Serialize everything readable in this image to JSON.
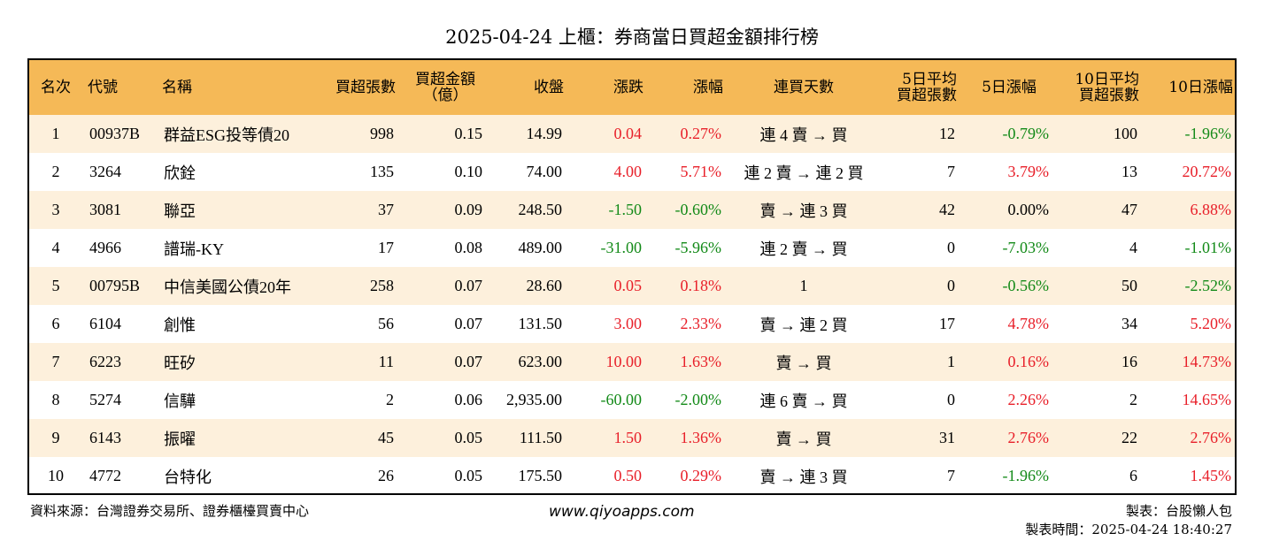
{
  "title": "2025-04-24 上櫃：券商當日買超金額排行榜",
  "headers": {
    "rank": "名次",
    "code": "代號",
    "name": "名稱",
    "net_lots": "買超張數",
    "net_amt_1": "買超金額",
    "net_amt_2": "（億）",
    "close": "收盤",
    "change": "漲跌",
    "pct": "漲幅",
    "streak": "連買天數",
    "avg5_1": "5日平均",
    "avg5_2": "買超張數",
    "pct5": "5日漲幅",
    "avg10_1": "10日平均",
    "avg10_2": "買超張數",
    "pct10": "10日漲幅"
  },
  "rows": [
    {
      "rank": "1",
      "code": "00937B",
      "name": "群益ESG投等債20",
      "lots": "998",
      "amt": "0.15",
      "close": "14.99",
      "change": "0.04",
      "change_dir": "up",
      "pct": "0.27%",
      "pct_dir": "up",
      "streak": "連 4 賣 → 買",
      "avg5": "12",
      "pct5": "-0.79%",
      "pct5_dir": "down",
      "avg10": "100",
      "pct10": "-1.96%",
      "pct10_dir": "down"
    },
    {
      "rank": "2",
      "code": "3264",
      "name": "欣銓",
      "lots": "135",
      "amt": "0.10",
      "close": "74.00",
      "change": "4.00",
      "change_dir": "up",
      "pct": "5.71%",
      "pct_dir": "up",
      "streak": "連 2 賣 → 連 2 買",
      "avg5": "7",
      "pct5": "3.79%",
      "pct5_dir": "up",
      "avg10": "13",
      "pct10": "20.72%",
      "pct10_dir": "up"
    },
    {
      "rank": "3",
      "code": "3081",
      "name": "聯亞",
      "lots": "37",
      "amt": "0.09",
      "close": "248.50",
      "change": "-1.50",
      "change_dir": "down",
      "pct": "-0.60%",
      "pct_dir": "down",
      "streak": "賣 → 連 3 買",
      "avg5": "42",
      "pct5": "0.00%",
      "pct5_dir": "zero",
      "avg10": "47",
      "pct10": "6.88%",
      "pct10_dir": "up"
    },
    {
      "rank": "4",
      "code": "4966",
      "name": "譜瑞-KY",
      "lots": "17",
      "amt": "0.08",
      "close": "489.00",
      "change": "-31.00",
      "change_dir": "down",
      "pct": "-5.96%",
      "pct_dir": "down",
      "streak": "連 2 賣 → 買",
      "avg5": "0",
      "pct5": "-7.03%",
      "pct5_dir": "down",
      "avg10": "4",
      "pct10": "-1.01%",
      "pct10_dir": "down"
    },
    {
      "rank": "5",
      "code": "00795B",
      "name": "中信美國公債20年",
      "lots": "258",
      "amt": "0.07",
      "close": "28.60",
      "change": "0.05",
      "change_dir": "up",
      "pct": "0.18%",
      "pct_dir": "up",
      "streak": "1",
      "avg5": "0",
      "pct5": "-0.56%",
      "pct5_dir": "down",
      "avg10": "50",
      "pct10": "-2.52%",
      "pct10_dir": "down"
    },
    {
      "rank": "6",
      "code": "6104",
      "name": "創惟",
      "lots": "56",
      "amt": "0.07",
      "close": "131.50",
      "change": "3.00",
      "change_dir": "up",
      "pct": "2.33%",
      "pct_dir": "up",
      "streak": "賣 → 連 2 買",
      "avg5": "17",
      "pct5": "4.78%",
      "pct5_dir": "up",
      "avg10": "34",
      "pct10": "5.20%",
      "pct10_dir": "up"
    },
    {
      "rank": "7",
      "code": "6223",
      "name": "旺矽",
      "lots": "11",
      "amt": "0.07",
      "close": "623.00",
      "change": "10.00",
      "change_dir": "up",
      "pct": "1.63%",
      "pct_dir": "up",
      "streak": "賣 → 買",
      "avg5": "1",
      "pct5": "0.16%",
      "pct5_dir": "up",
      "avg10": "16",
      "pct10": "14.73%",
      "pct10_dir": "up"
    },
    {
      "rank": "8",
      "code": "5274",
      "name": "信驊",
      "lots": "2",
      "amt": "0.06",
      "close": "2,935.00",
      "change": "-60.00",
      "change_dir": "down",
      "pct": "-2.00%",
      "pct_dir": "down",
      "streak": "連 6 賣 → 買",
      "avg5": "0",
      "pct5": "2.26%",
      "pct5_dir": "up",
      "avg10": "2",
      "pct10": "14.65%",
      "pct10_dir": "up"
    },
    {
      "rank": "9",
      "code": "6143",
      "name": "振曜",
      "lots": "45",
      "amt": "0.05",
      "close": "111.50",
      "change": "1.50",
      "change_dir": "up",
      "pct": "1.36%",
      "pct_dir": "up",
      "streak": "賣 → 買",
      "avg5": "31",
      "pct5": "2.76%",
      "pct5_dir": "up",
      "avg10": "22",
      "pct10": "2.76%",
      "pct10_dir": "up"
    },
    {
      "rank": "10",
      "code": "4772",
      "name": "台特化",
      "lots": "26",
      "amt": "0.05",
      "close": "175.50",
      "change": "0.50",
      "change_dir": "up",
      "pct": "0.29%",
      "pct_dir": "up",
      "streak": "賣 → 連 3 買",
      "avg5": "7",
      "pct5": "-1.96%",
      "pct5_dir": "down",
      "avg10": "6",
      "pct10": "1.45%",
      "pct10_dir": "up"
    }
  ],
  "footer": {
    "source": "資料來源：台灣證券交易所、證券櫃檯買賣中心",
    "site": "www.qiyoapps.com",
    "maker": "製表：台股懶人包",
    "time": "製表時間：2025-04-24 18:40:27"
  },
  "colors": {
    "header_bg": "#f5b957",
    "odd_row_bg": "#fdf0dc",
    "up": "#e8202a",
    "down": "#138a18"
  }
}
